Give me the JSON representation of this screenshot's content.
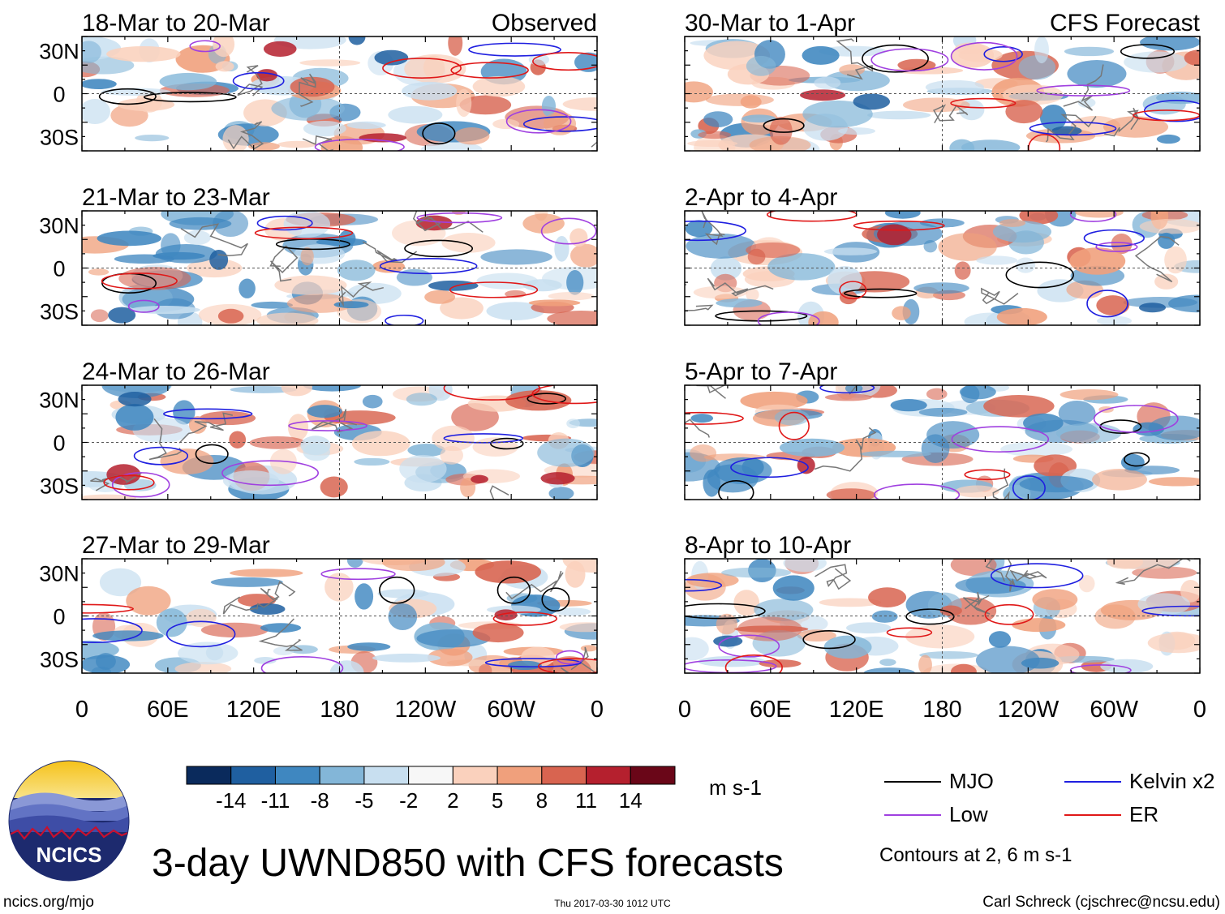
{
  "chart_data": {
    "type": "heatmap",
    "title": "3-day UWND850 with CFS forecasts",
    "variable": "UWND850",
    "units": "m s-1",
    "left_column_label": "Observed",
    "right_column_label": "CFS Forecast",
    "x_ticks": [
      "0",
      "60E",
      "120E",
      "180",
      "120W",
      "60W",
      "0"
    ],
    "y_ticks": [
      "30N",
      "0",
      "30S"
    ],
    "lon_range": [
      0,
      360
    ],
    "lat_range": [
      -40,
      40
    ],
    "panels": [
      {
        "period": "18-Mar to 20-Mar",
        "source": "Observed"
      },
      {
        "period": "21-Mar to 23-Mar",
        "source": "Observed"
      },
      {
        "period": "24-Mar to 26-Mar",
        "source": "Observed"
      },
      {
        "period": "27-Mar to 29-Mar",
        "source": "Observed"
      },
      {
        "period": "30-Mar to 1-Apr",
        "source": "CFS Forecast"
      },
      {
        "period": "2-Apr to 4-Apr",
        "source": "CFS Forecast"
      },
      {
        "period": "5-Apr to 7-Apr",
        "source": "CFS Forecast"
      },
      {
        "period": "8-Apr to 10-Apr",
        "source": "CFS Forecast"
      }
    ],
    "colorbar": {
      "labels": [
        "-14",
        "-11",
        "-8",
        "-5",
        "-2",
        "2",
        "5",
        "8",
        "11",
        "14"
      ],
      "colors": [
        "#0a2a5c",
        "#1f5fa0",
        "#3f87c0",
        "#83b6d8",
        "#c8dff0",
        "#f7f7f7",
        "#fad1bd",
        "#f0a07c",
        "#d86450",
        "#b5202e",
        "#6a0618"
      ]
    },
    "legend": [
      {
        "label": "MJO",
        "color": "#000000"
      },
      {
        "label": "Kelvin x2",
        "color": "#1f1fe0"
      },
      {
        "label": "Low",
        "color": "#a040e0"
      },
      {
        "label": "ER",
        "color": "#e01818"
      }
    ],
    "contour_note": "Contours at 2, 6 m s-1"
  },
  "logo": {
    "text": "NCICS"
  },
  "footer": {
    "url": "ncics.org/mjo",
    "timestamp": "Thu 2017-03-30 1012 UTC",
    "author": "Carl Schreck (cjschrec@ncsu.edu)"
  }
}
